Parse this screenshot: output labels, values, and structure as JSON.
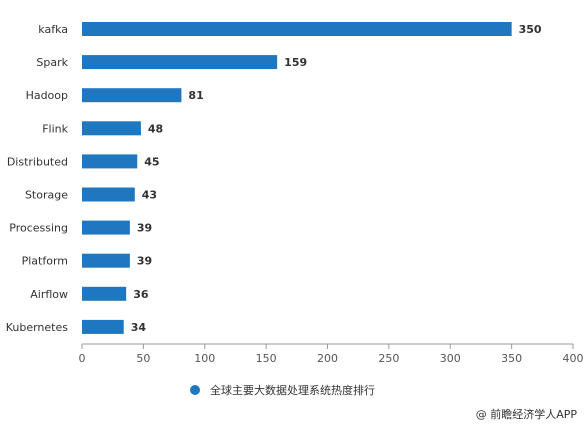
{
  "chart_data": {
    "type": "bar",
    "orientation": "horizontal",
    "categories": [
      "kafka",
      "Spark",
      "Hadoop",
      "Flink",
      "Distributed",
      "Storage",
      "Processing",
      "Platform",
      "Airflow",
      "Kubernetes"
    ],
    "series": [
      {
        "name": "全球主要大数据处理系统热度排行",
        "values": [
          350,
          159,
          81,
          48,
          45,
          43,
          39,
          39,
          36,
          34
        ]
      }
    ],
    "xlim": [
      0,
      400
    ],
    "xticks": [
      0,
      50,
      100,
      150,
      200,
      250,
      300,
      350,
      400
    ],
    "grid": false,
    "legend_position": "bottom",
    "color": "#1f77bf"
  },
  "source": "@ 前瞻经济学人APP"
}
